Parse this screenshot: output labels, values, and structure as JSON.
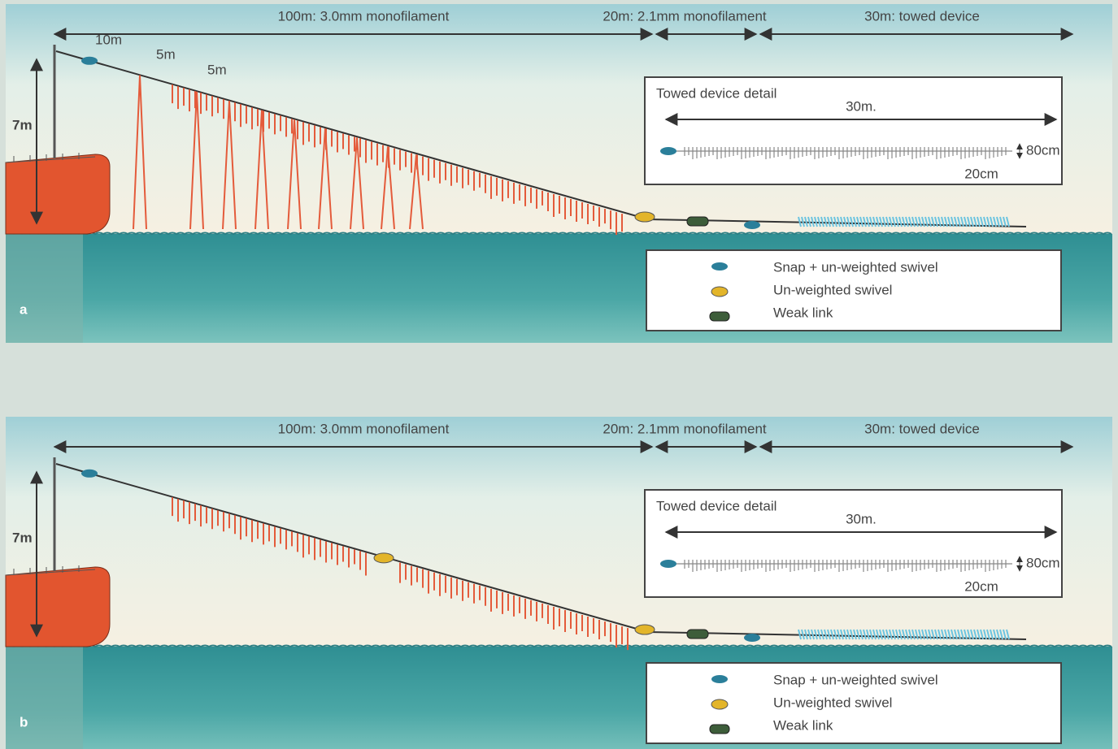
{
  "panels": [
    {
      "label": "a",
      "segments": [
        "100m: 3.0mm monofilament",
        "20m: 2.1mm monofilament",
        "30m: towed device"
      ],
      "spacing": [
        "10m",
        "5m",
        "5m"
      ],
      "height": "7m",
      "detail": {
        "title": "Towed device detail",
        "length": "30m.",
        "depth": "80cm",
        "gap": "20cm"
      },
      "legend": [
        "Snap + un-weighted swivel",
        "Un-weighted swivel",
        "Weak link"
      ]
    },
    {
      "label": "b",
      "segments": [
        "100m: 3.0mm monofilament",
        "20m: 2.1mm monofilament",
        "30m: towed device"
      ],
      "height": "7m",
      "detail": {
        "title": "Towed device detail",
        "length": "30m.",
        "depth": "80cm",
        "gap": "20cm"
      },
      "legend": [
        "Snap + un-weighted swivel",
        "Un-weighted swivel",
        "Weak link"
      ]
    }
  ]
}
